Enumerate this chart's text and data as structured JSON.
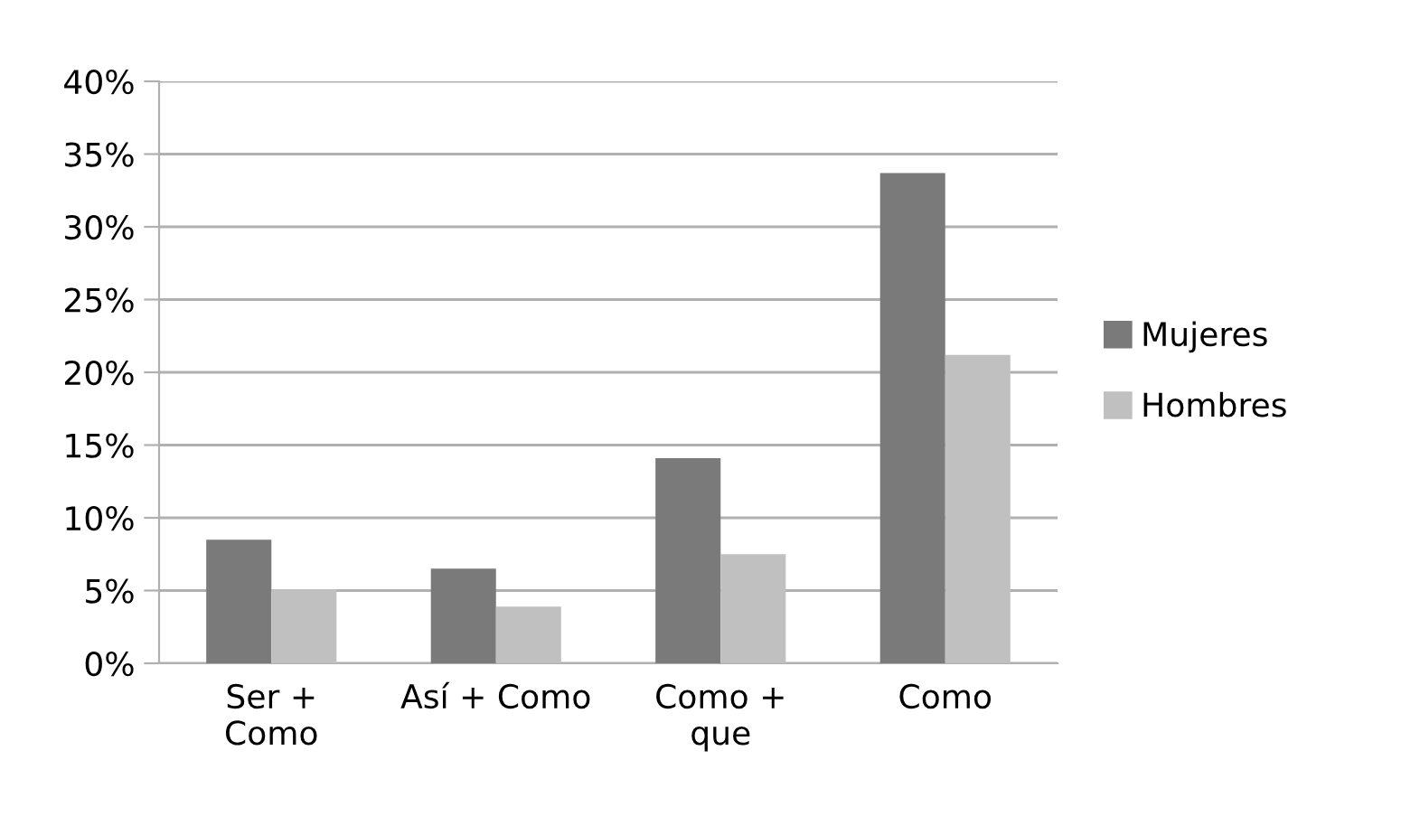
{
  "chart_data": {
    "type": "bar",
    "categories": [
      "Ser +\nComo",
      "Así + Como",
      "Como +\nque",
      "Como"
    ],
    "series": [
      {
        "name": "Mujeres",
        "color": "#7a7a7a",
        "values": [
          8.5,
          6.5,
          14.1,
          33.7
        ]
      },
      {
        "name": "Hombres",
        "color": "#c0c0c0",
        "values": [
          5.1,
          3.9,
          7.5,
          21.2
        ]
      }
    ],
    "ylim": [
      0,
      40
    ],
    "yticks": [
      {
        "value": 0,
        "label": "0%"
      },
      {
        "value": 5,
        "label": "5%"
      },
      {
        "value": 10,
        "label": "10%"
      },
      {
        "value": 15,
        "label": "15%"
      },
      {
        "value": 20,
        "label": "20%"
      },
      {
        "value": 25,
        "label": "25%"
      },
      {
        "value": 30,
        "label": "30%"
      },
      {
        "value": 35,
        "label": "35%"
      },
      {
        "value": 40,
        "label": "40%"
      }
    ],
    "grid": "y",
    "legend": "right"
  }
}
